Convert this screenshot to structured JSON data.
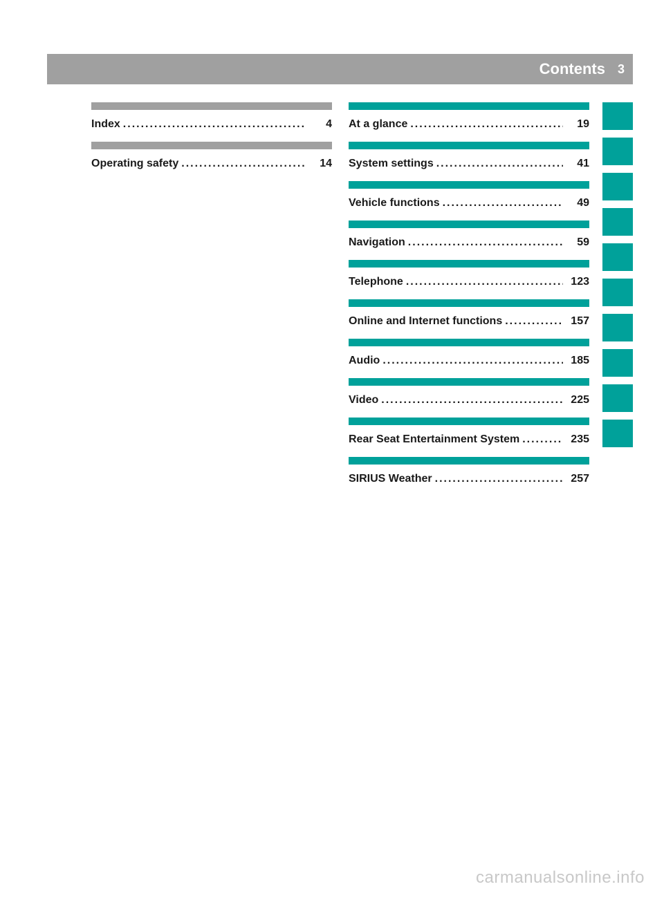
{
  "header": {
    "title": "Contents",
    "page_number": "3",
    "band_color": "#a0a0a0",
    "text_color": "#ffffff"
  },
  "colors": {
    "teal": "#00a19a",
    "gray": "#a0a0a0",
    "text": "#1a1a1a",
    "watermark": "#c8c8c8",
    "background": "#ffffff"
  },
  "typography": {
    "font_family": "Arial, Helvetica, sans-serif",
    "toc_fontsize": 16,
    "toc_fontweight": "bold",
    "header_title_fontsize": 22,
    "header_page_fontsize": 18,
    "watermark_fontsize": 24
  },
  "toc_left": {
    "bar_color": "#a0a0a0",
    "items": [
      {
        "label": "Index",
        "page": "4"
      },
      {
        "label": "Operating safety",
        "page": "14"
      }
    ]
  },
  "toc_right": {
    "bar_color": "#00a19a",
    "items": [
      {
        "label": "At a glance",
        "page": "19"
      },
      {
        "label": "System settings",
        "page": "41"
      },
      {
        "label": "Vehicle functions",
        "page": "49"
      },
      {
        "label": "Navigation",
        "page": "59"
      },
      {
        "label": "Telephone",
        "page": "123"
      },
      {
        "label": "Online and Internet functions",
        "page": "157"
      },
      {
        "label": "Audio",
        "page": "185"
      },
      {
        "label": "Video",
        "page": "225"
      },
      {
        "label": "Rear Seat Entertainment System",
        "page": "235"
      },
      {
        "label": "SIRIUS Weather",
        "page": "257"
      }
    ]
  },
  "thumb_tabs": {
    "count": 10,
    "color": "#00a19a",
    "width": 44,
    "height": 40,
    "gap": 11
  },
  "watermark": {
    "text": "carmanualsonline.info"
  },
  "dots": "......................................................................"
}
